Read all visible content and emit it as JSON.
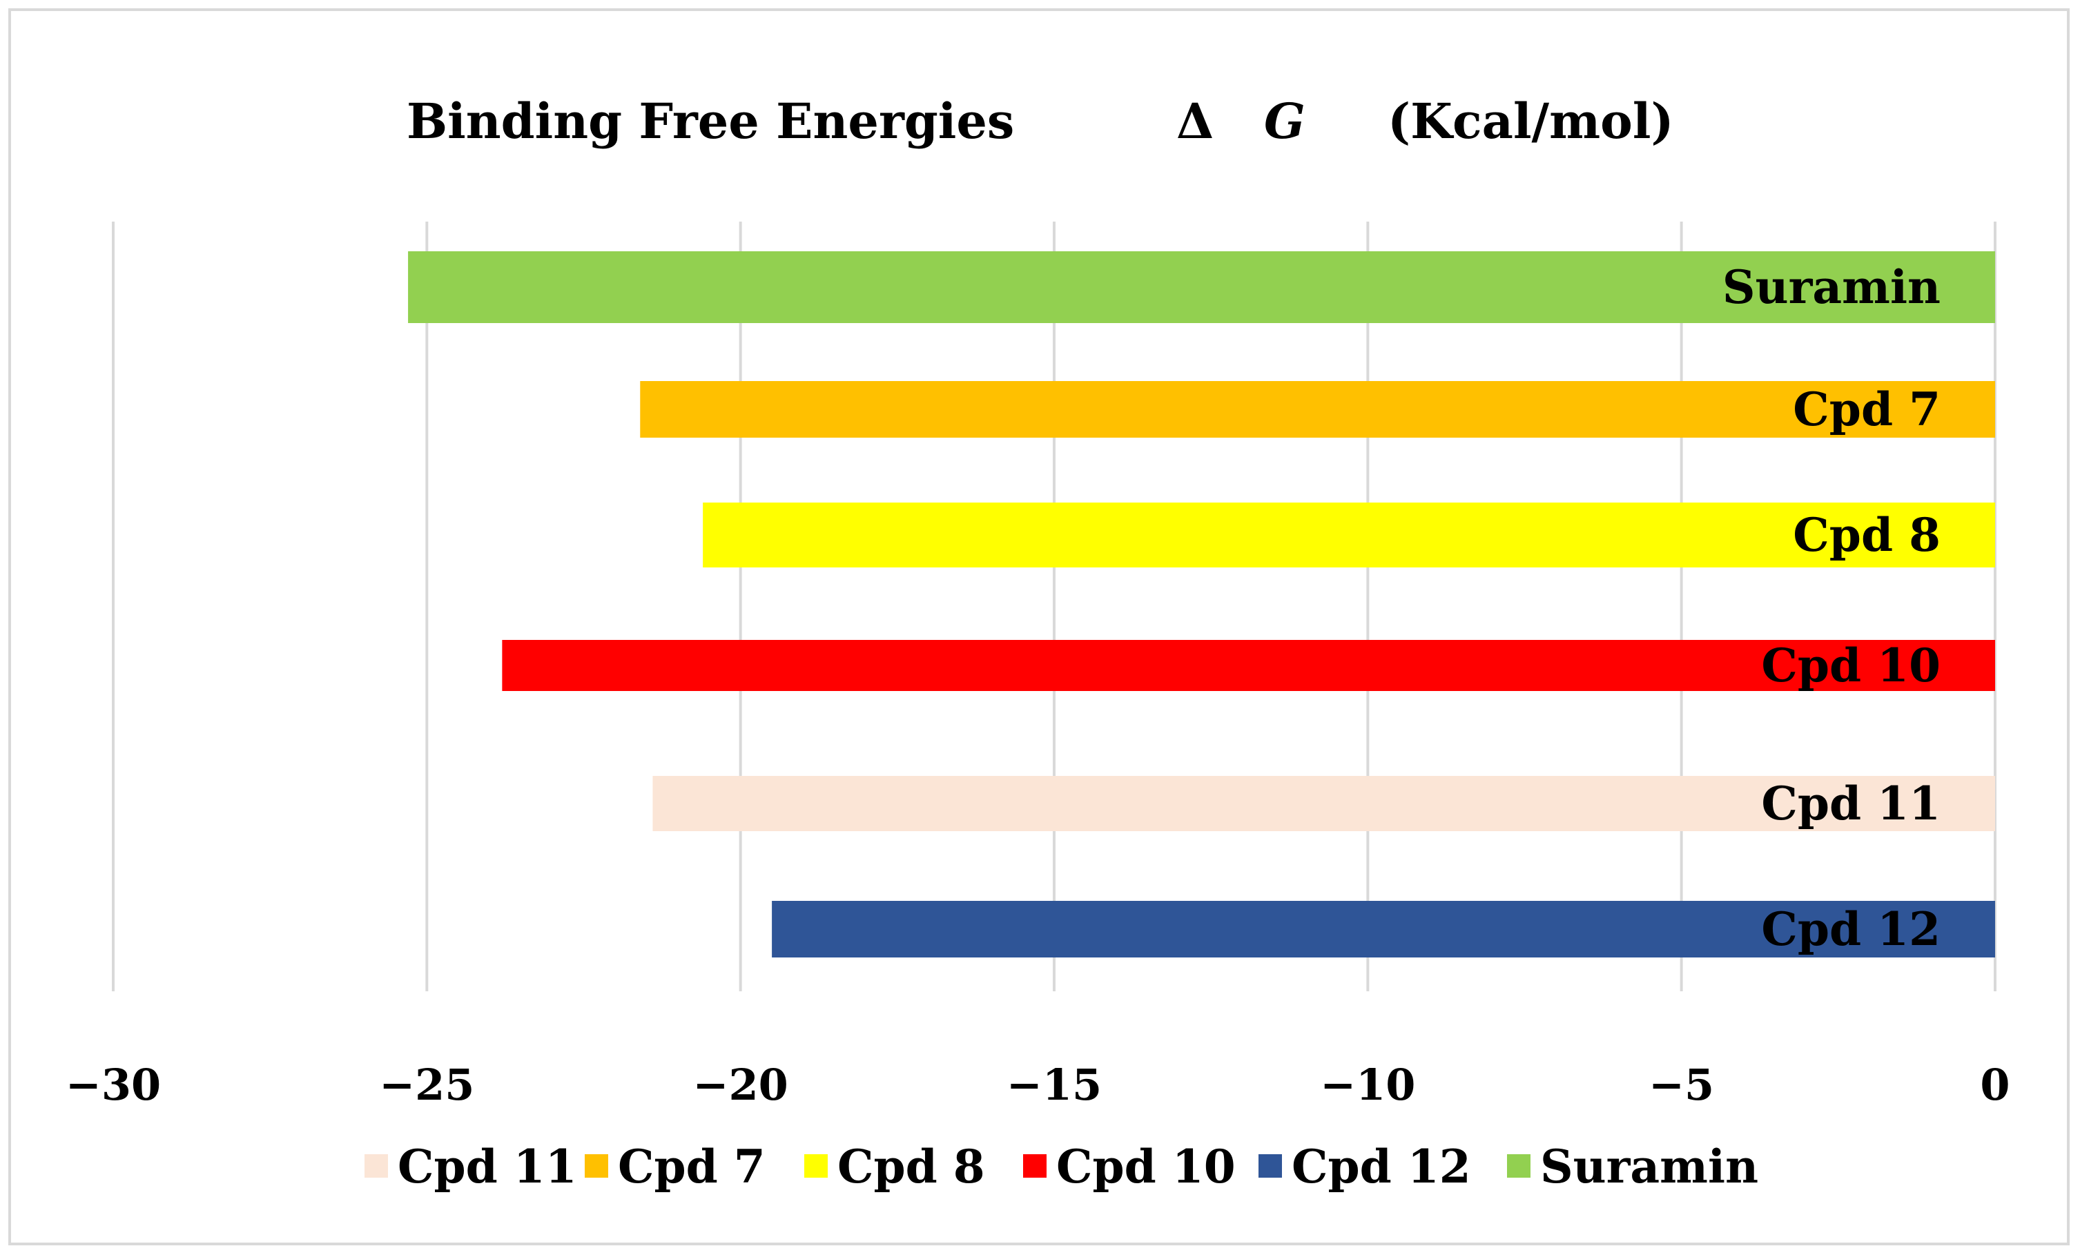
{
  "chart_data": {
    "type": "bar",
    "orientation": "horizontal",
    "title": {
      "part1": "Binding Free Energies",
      "part2": "Δ",
      "part3": "G",
      "part4": "(Kcal/mol)"
    },
    "xlabel": "",
    "ylabel": "",
    "xlim": [
      -30,
      0
    ],
    "xticks": [
      -30,
      -25,
      -20,
      -15,
      -10,
      -5,
      0
    ],
    "xtick_labels": [
      "−30",
      "−25",
      "−20",
      "−15",
      "−10",
      "−5",
      "0"
    ],
    "grid": true,
    "legend_position": "bottom",
    "series": [
      {
        "name": "Suramin",
        "value": -25.3,
        "color": "#92d050"
      },
      {
        "name": "Cpd 7",
        "value": -21.6,
        "color": "#ffc000"
      },
      {
        "name": "Cpd 8",
        "value": -20.6,
        "color": "#ffff00"
      },
      {
        "name": "Cpd 10",
        "value": -23.8,
        "color": "#ff0000"
      },
      {
        "name": "Cpd 11",
        "value": -21.4,
        "color": "#fbe5d6"
      },
      {
        "name": "Cpd 12",
        "value": -19.5,
        "color": "#2f5597"
      }
    ],
    "legend_order": [
      "Cpd 11",
      "Cpd 7",
      "Cpd 8",
      "Cpd 10",
      "Cpd 12",
      "Suramin"
    ]
  }
}
